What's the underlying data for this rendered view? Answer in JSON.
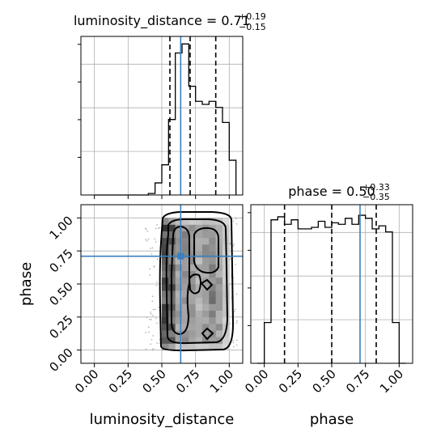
{
  "chart_data": [
    {
      "panel": "luminosity_distance-marginal",
      "type": "histogram",
      "title_main": "luminosity_distance = 0.71",
      "title_sup": "+0.19",
      "title_sub": "−0.15",
      "bin_edges": [
        0.0,
        0.05,
        0.1,
        0.15,
        0.2,
        0.25,
        0.3,
        0.35,
        0.4,
        0.45,
        0.5,
        0.55,
        0.6,
        0.65,
        0.7,
        0.75,
        0.8,
        0.85,
        0.9,
        0.95,
        1.0,
        1.05
      ],
      "counts": [
        0,
        0,
        0,
        0,
        0,
        0,
        0,
        0,
        0.01,
        0.08,
        0.2,
        0.5,
        0.94,
        1.0,
        0.72,
        0.62,
        0.6,
        0.62,
        0.58,
        0.48,
        0.23
      ],
      "ylim": [
        0,
        1.05
      ],
      "quantiles": [
        0.56,
        0.71,
        0.9
      ],
      "truth": 0.64,
      "xlim": [
        -0.1,
        1.1
      ]
    },
    {
      "panel": "joint-phase-vs-luminosity_distance",
      "type": "heatmap",
      "xlabel": "luminosity_distance",
      "ylabel": "phase",
      "xticks": [
        "0.00",
        "0.25",
        "0.50",
        "0.75",
        "1.00"
      ],
      "yticks": [
        "0.00",
        "0.25",
        "0.50",
        "0.75",
        "1.00"
      ],
      "xlim": [
        -0.1,
        1.1
      ],
      "ylim": [
        -0.1,
        1.1
      ],
      "truth": {
        "x": 0.64,
        "y": 0.71
      }
    },
    {
      "panel": "phase-marginal",
      "type": "histogram",
      "title_main": "phase = 0.50",
      "title_sup": "+0.33",
      "title_sub": "−0.35",
      "xlabel": "phase",
      "xticks": [
        "0.00",
        "0.25",
        "0.50",
        "0.75",
        "1.00"
      ],
      "bin_edges": [
        -0.05,
        0.0,
        0.05,
        0.1,
        0.15,
        0.2,
        0.25,
        0.3,
        0.35,
        0.4,
        0.45,
        0.5,
        0.55,
        0.6,
        0.65,
        0.7,
        0.75,
        0.8,
        0.85,
        0.9,
        0.95,
        1.0,
        1.05
      ],
      "counts": [
        0,
        0.27,
        0.95,
        0.97,
        0.92,
        0.95,
        0.89,
        0.89,
        0.9,
        0.94,
        0.9,
        0.93,
        0.92,
        0.96,
        0.92,
        0.98,
        0.96,
        0.89,
        0.91,
        0.87,
        0.27,
        0
      ],
      "ylim": [
        0,
        1.05
      ],
      "quantiles": [
        0.15,
        0.5,
        0.83
      ],
      "truth": 0.71,
      "xlim": [
        -0.1,
        1.1
      ]
    }
  ]
}
